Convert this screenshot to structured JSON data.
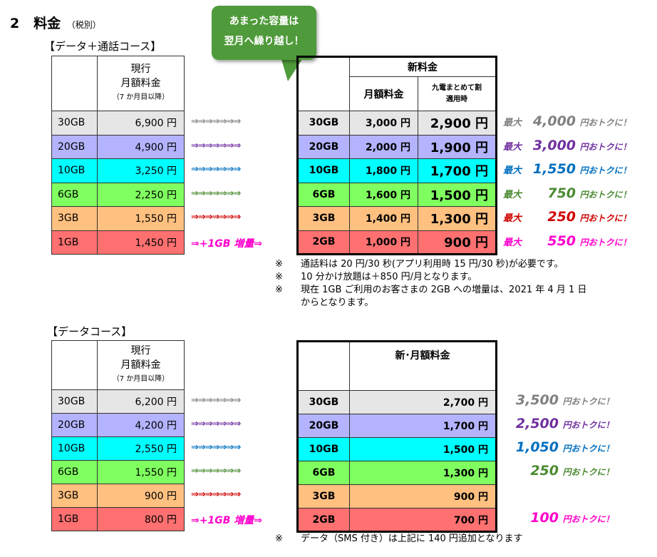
{
  "section": {
    "number": "2",
    "title": "料金",
    "note": "（税別）"
  },
  "colors": {
    "gray": "#e6e6e6",
    "lavender": "#b3b3ff",
    "cyan": "#00ffff",
    "green": "#80ff60",
    "orange": "#ffc080",
    "red": "#ff7070",
    "arrow_gray": "#808080",
    "arrow_purple": "#7030a0",
    "arrow_blue": "#0070c0",
    "arrow_green": "#4a8a30",
    "arrow_red": "#d00000",
    "arrow_pink": "#ff00cc",
    "callout": "#4f9a3a"
  },
  "callout": {
    "line1": "あまった容量は",
    "line2": "翌月へ繰り越し！"
  },
  "voice_course": {
    "title": "【データ＋通話コース】",
    "current_header": {
      "line1": "現行",
      "line2": "月額料金",
      "line3": "（7 か月目以降）"
    },
    "new_header": {
      "title": "新料金",
      "monthly": "月額料金",
      "discount_line1": "九電まとめて割",
      "discount_line2": "適用時"
    },
    "arrows": "⇒⇒⇒⇒⇒⇒⇒",
    "rows": [
      {
        "cur_gb": "30GB",
        "cur_price": "6,900 円",
        "new_gb": "30GB",
        "new_price": "3,000 円",
        "disc_price": "2,900 円",
        "save_pre": "最大",
        "save_num": "4,000",
        "save_suf": "円おトクに！",
        "arrow_text": ""
      },
      {
        "cur_gb": "20GB",
        "cur_price": "4,900 円",
        "new_gb": "20GB",
        "new_price": "2,000 円",
        "disc_price": "1,900 円",
        "save_pre": "最大",
        "save_num": "3,000",
        "save_suf": "円おトクに！",
        "arrow_text": ""
      },
      {
        "cur_gb": "10GB",
        "cur_price": "3,250 円",
        "new_gb": "10GB",
        "new_price": "1,800 円",
        "disc_price": "1,700 円",
        "save_pre": "最大",
        "save_num": "1,550",
        "save_suf": "円おトクに！",
        "arrow_text": ""
      },
      {
        "cur_gb": "6GB",
        "cur_price": "2,250 円",
        "new_gb": "6GB",
        "new_price": "1,600 円",
        "disc_price": "1,500 円",
        "save_pre": "最大",
        "save_num": "750",
        "save_suf": "円おトクに！",
        "arrow_text": ""
      },
      {
        "cur_gb": "3GB",
        "cur_price": "1,550 円",
        "new_gb": "3GB",
        "new_price": "1,400 円",
        "disc_price": "1,300 円",
        "save_pre": "最大",
        "save_num": "250",
        "save_suf": "円おトクに！",
        "arrow_text": ""
      },
      {
        "cur_gb": "1GB",
        "cur_price": "1,450 円",
        "new_gb": "2GB",
        "new_price": "1,000 円",
        "disc_price": "900 円",
        "save_pre": "最大",
        "save_num": "550",
        "save_suf": "円おトクに！",
        "arrow_text": "⇒+1GB 増量⇒"
      }
    ],
    "notes": [
      {
        "mark": "※",
        "text": "通話料は 20 円/30 秒(アプリ利用時 15 円/30 秒)が必要です。"
      },
      {
        "mark": "※",
        "text": "10 分かけ放題は＋850 円/月となります。"
      },
      {
        "mark": "※",
        "text": "現在 1GB ご利用のお客さまの 2GB への増量は、2021 年 4 月 1 日"
      }
    ],
    "notes_cont": "からとなります。"
  },
  "data_course": {
    "title": "【データコース】",
    "current_header": {
      "line1": "現行",
      "line2": "月額料金",
      "line3": "（7 か月目以降）"
    },
    "new_header": {
      "title": "新･月額料金"
    },
    "arrows": "⇒⇒⇒⇒⇒⇒⇒",
    "rows": [
      {
        "cur_gb": "30GB",
        "cur_price": "6,200 円",
        "new_gb": "30GB",
        "new_price": "2,700 円",
        "save_num": "3,500",
        "save_suf": "円おトクに！",
        "arrow_text": ""
      },
      {
        "cur_gb": "20GB",
        "cur_price": "4,200 円",
        "new_gb": "20GB",
        "new_price": "1,700 円",
        "save_num": "2,500",
        "save_suf": "円おトクに！",
        "arrow_text": ""
      },
      {
        "cur_gb": "10GB",
        "cur_price": "2,550 円",
        "new_gb": "10GB",
        "new_price": "1,500 円",
        "save_num": "1,050",
        "save_suf": "円おトクに！",
        "arrow_text": ""
      },
      {
        "cur_gb": "6GB",
        "cur_price": "1,550 円",
        "new_gb": "6GB",
        "new_price": "1,300 円",
        "save_num": "250",
        "save_suf": "円おトクに！",
        "arrow_text": ""
      },
      {
        "cur_gb": "3GB",
        "cur_price": "900 円",
        "new_gb": "3GB",
        "new_price": "900 円",
        "save_num": "",
        "save_suf": "",
        "arrow_text": ""
      },
      {
        "cur_gb": "1GB",
        "cur_price": "800 円",
        "new_gb": "2GB",
        "new_price": "700 円",
        "save_num": "100",
        "save_suf": "円おトクに！",
        "arrow_text": "⇒+1GB 増量⇒"
      }
    ],
    "notes": [
      {
        "mark": "※",
        "text": "データ（SMS 付き）は上記に 140 円追加となります"
      }
    ]
  }
}
